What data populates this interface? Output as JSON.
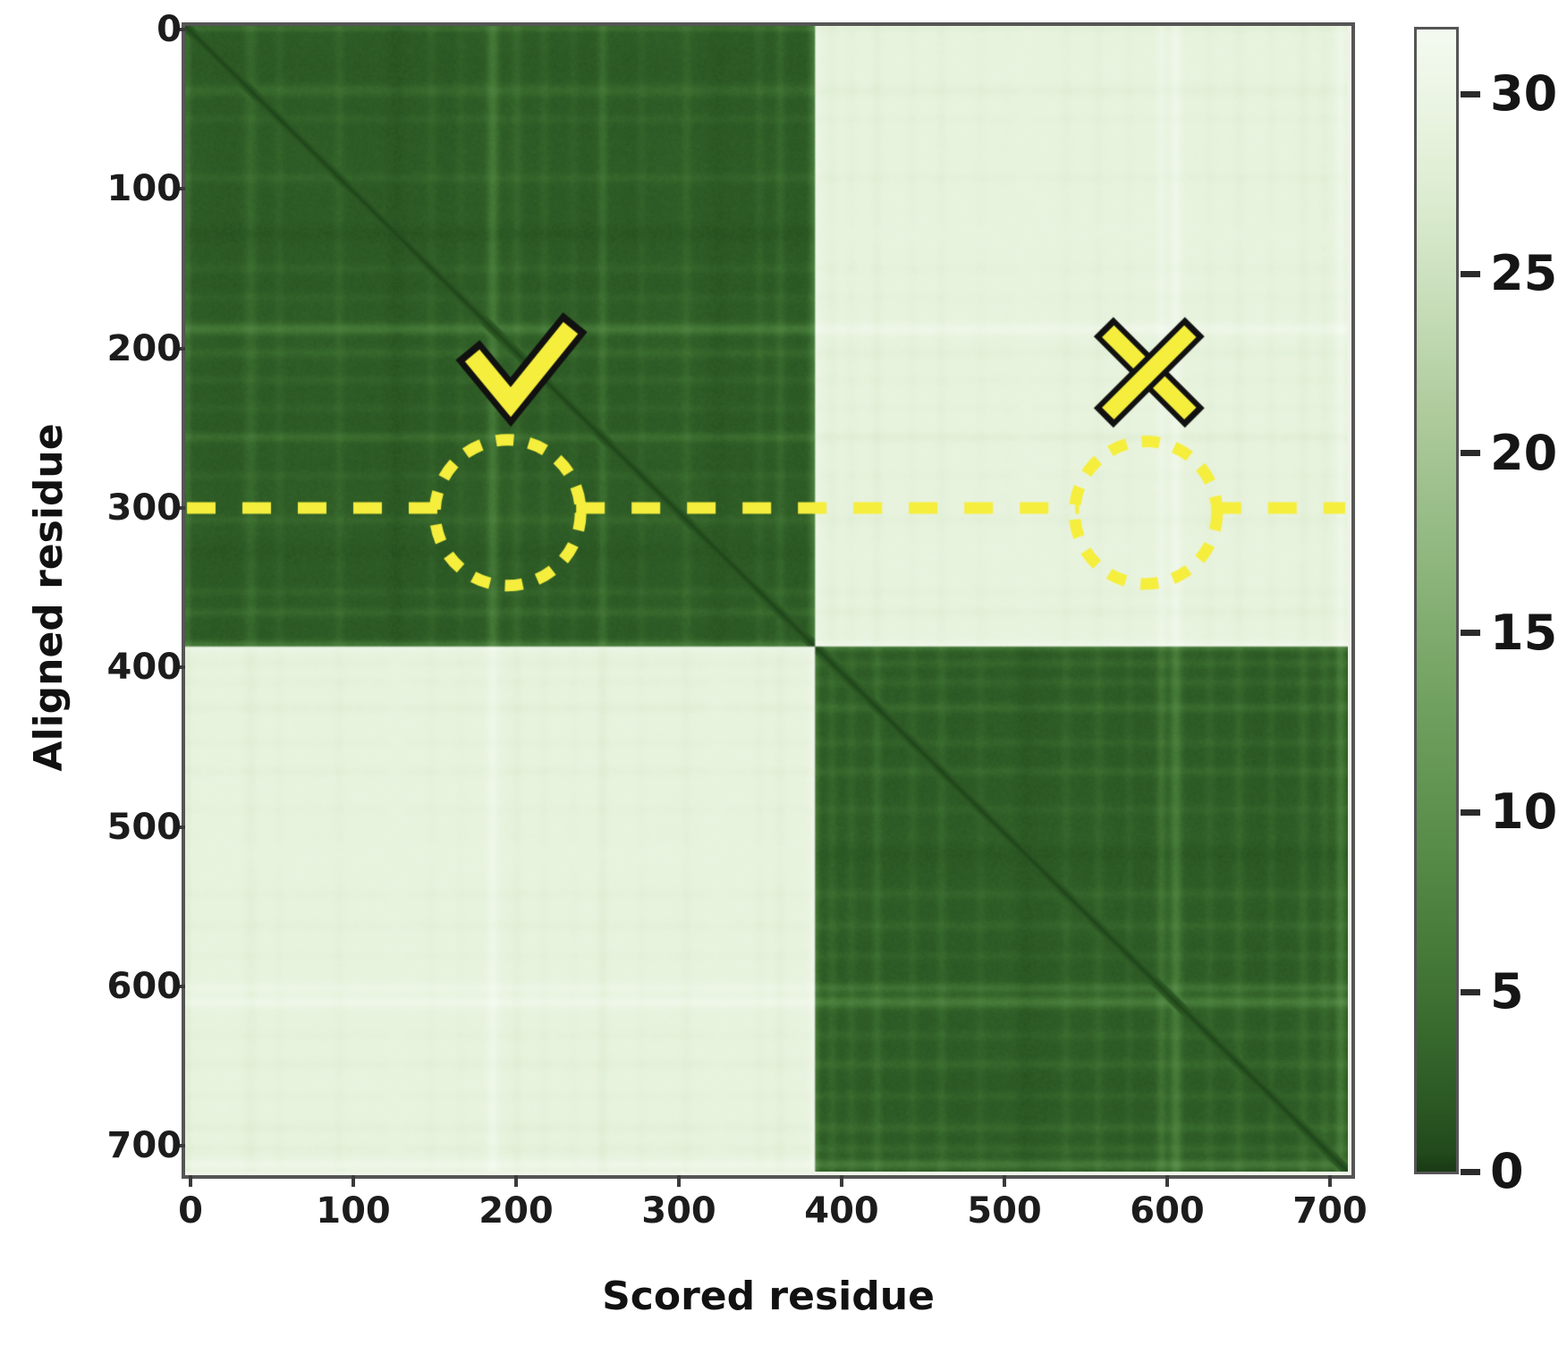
{
  "figure": {
    "background": "#ffffff"
  },
  "style_colors": {
    "spine": "#555555",
    "tick": "#3a3a3a",
    "text": "#151515"
  },
  "chart_data": {
    "type": "heatmap",
    "title": "",
    "xlabel": "Scored residue",
    "ylabel": "Aligned residue",
    "x_ticks": [
      0,
      100,
      200,
      300,
      400,
      500,
      600,
      700
    ],
    "y_ticks": [
      0,
      100,
      200,
      300,
      400,
      500,
      600,
      700
    ],
    "n_residues": 720,
    "axis_range": [
      0,
      720
    ],
    "grid": false,
    "colorbar": {
      "ticks": [
        30,
        25,
        20,
        15,
        10,
        5,
        0
      ],
      "vmin": 0,
      "vmax": 31.8,
      "position": "right"
    },
    "colormap_stops": [
      [
        0,
        "#1a3a15"
      ],
      [
        0.5,
        "#224a1c"
      ],
      [
        2,
        "#2d5a25"
      ],
      [
        4,
        "#396b2e"
      ],
      [
        6,
        "#467a39"
      ],
      [
        9,
        "#588c49"
      ],
      [
        13,
        "#71a160"
      ],
      [
        17,
        "#8fb77e"
      ],
      [
        21,
        "#aecb9c"
      ],
      [
        24,
        "#c6ddb8"
      ],
      [
        27,
        "#dcecd0"
      ],
      [
        29,
        "#e8f3de"
      ],
      [
        30.5,
        "#eff7e9"
      ],
      [
        31.8,
        "#f4faf0"
      ]
    ],
    "domains": [
      {
        "start": 0,
        "end": 390
      },
      {
        "start": 390,
        "end": 720
      }
    ],
    "blocks": [
      {
        "rows": "0-390",
        "cols": "0-390",
        "mean_pae": 3,
        "appearance": "dark green (low error, intra-domain)"
      },
      {
        "rows": "0-390",
        "cols": "390-720",
        "mean_pae": 29,
        "appearance": "pale green-white (high error, inter-domain)"
      },
      {
        "rows": "390-720",
        "cols": "0-390",
        "mean_pae": 29,
        "appearance": "pale green-white (high error, inter-domain)"
      },
      {
        "rows": "390-720",
        "cols": "390-720",
        "mean_pae": 3,
        "appearance": "dark green (low error, intra-domain)"
      }
    ],
    "diagonal_pae": 0,
    "streak_rows": [
      [
        1,
        0.9,
        2
      ],
      [
        40,
        0.7,
        4
      ],
      [
        58,
        0.35,
        3
      ],
      [
        95,
        0.45,
        3
      ],
      [
        130,
        -0.35,
        5
      ],
      [
        152,
        0.35,
        3
      ],
      [
        170,
        0.3,
        3
      ],
      [
        190,
        1.45,
        3.5
      ],
      [
        205,
        0.5,
        3
      ],
      [
        222,
        0.4,
        3
      ],
      [
        240,
        0.3,
        3
      ],
      [
        258,
        0.9,
        3
      ],
      [
        282,
        0.35,
        3
      ],
      [
        310,
        0.45,
        3
      ],
      [
        330,
        -0.3,
        6
      ],
      [
        355,
        0.4,
        3
      ],
      [
        368,
        0.6,
        3
      ],
      [
        389,
        1.55,
        3
      ],
      [
        400,
        0.5,
        3
      ],
      [
        412,
        0.45,
        3
      ],
      [
        428,
        0.7,
        3
      ],
      [
        450,
        0.4,
        3
      ],
      [
        468,
        0.5,
        3
      ],
      [
        492,
        0.35,
        3
      ],
      [
        520,
        -0.35,
        6
      ],
      [
        545,
        0.4,
        3
      ],
      [
        565,
        0.45,
        3
      ],
      [
        584,
        0.4,
        3
      ],
      [
        604,
        1.1,
        3
      ],
      [
        613,
        1.55,
        3.5
      ],
      [
        634,
        0.4,
        3
      ],
      [
        652,
        0.5,
        3
      ],
      [
        672,
        0.45,
        3
      ],
      [
        692,
        0.55,
        3
      ],
      [
        705,
        0.5,
        3
      ],
      [
        715,
        1.45,
        3
      ]
    ],
    "annotations": {
      "color": "#f5ee3d",
      "outline": "#111111",
      "check_mark": {
        "scored": 200,
        "aligned": 214
      },
      "cross_mark": {
        "scored": 590,
        "aligned": 215
      },
      "dashed_line": {
        "aligned": 300
      },
      "dashed_circles": [
        {
          "scored": 196,
          "aligned": 303,
          "radius_residues": 45
        },
        {
          "scored": 588,
          "aligned": 303,
          "radius_residues": 44
        }
      ]
    }
  }
}
